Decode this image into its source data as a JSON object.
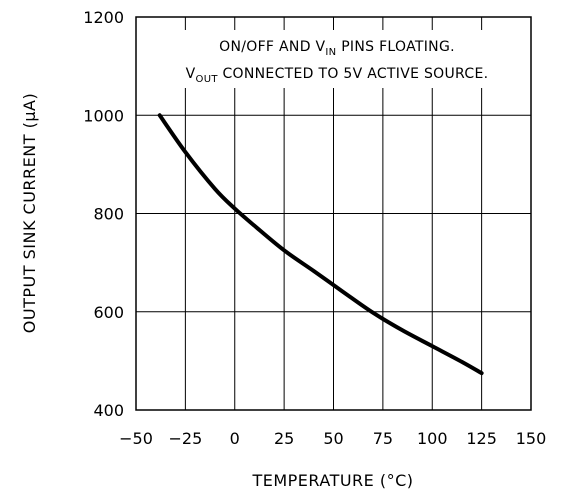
{
  "chart_data": {
    "type": "line",
    "xlabel": "TEMPERATURE (°C)",
    "ylabel": "OUTPUT SINK CURRENT (μA)",
    "xlim": [
      -50,
      150
    ],
    "ylim": [
      400,
      1200
    ],
    "xticks": [
      "-50",
      "-25",
      "0",
      "25",
      "50",
      "75",
      "100",
      "125",
      "150"
    ],
    "yticks": [
      "400",
      "600",
      "800",
      "1000",
      "1200"
    ],
    "grid": true,
    "annotation": {
      "line1_pre": "ON/OFF AND V",
      "line1_sub": "IN",
      "line1_post": " PINS FLOATING.",
      "line2_pre": "V",
      "line2_sub": "OUT",
      "line2_post": " CONNECTED TO 5V ACTIVE SOURCE."
    },
    "series": [
      {
        "x": [
          -38,
          -25,
          -10,
          0,
          10,
          25,
          40,
          55,
          70,
          85,
          100,
          115,
          125
        ],
        "y": [
          1000,
          925,
          850,
          810,
          775,
          725,
          683,
          640,
          598,
          562,
          530,
          498,
          475
        ]
      }
    ]
  }
}
